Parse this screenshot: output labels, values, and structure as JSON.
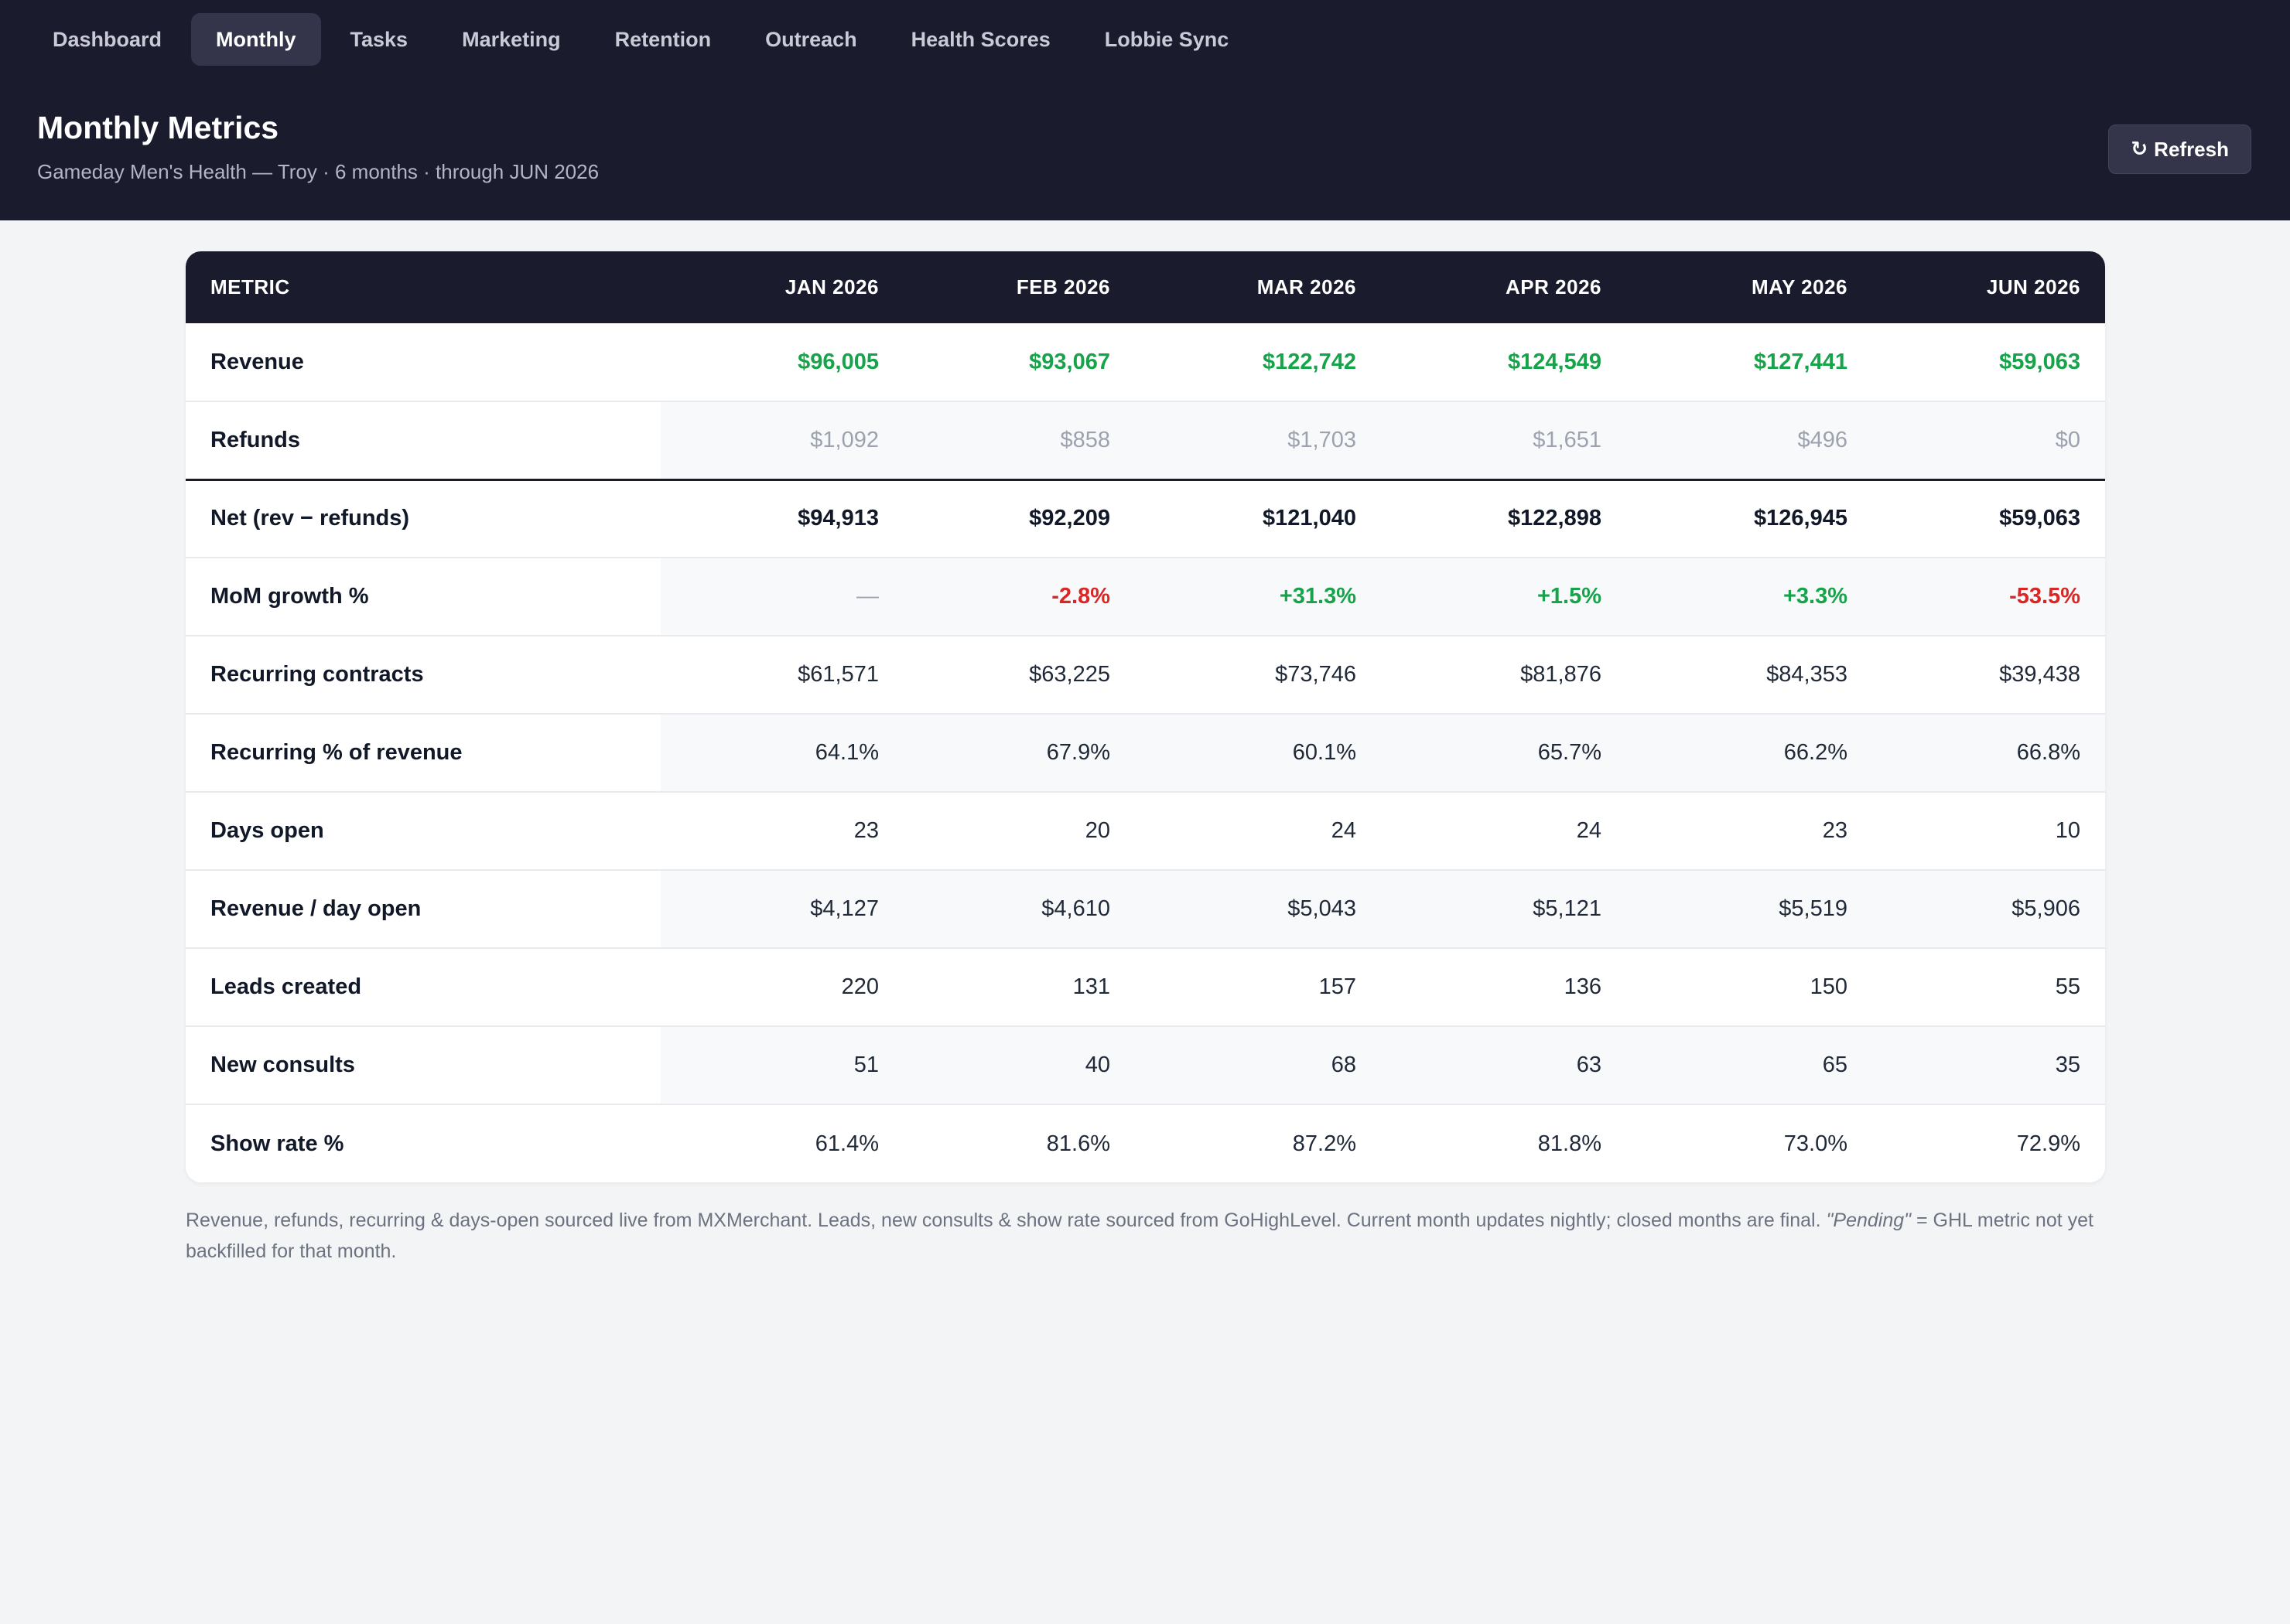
{
  "nav": {
    "tabs": [
      {
        "label": "Dashboard",
        "active": false
      },
      {
        "label": "Monthly",
        "active": true
      },
      {
        "label": "Tasks",
        "active": false
      },
      {
        "label": "Marketing",
        "active": false
      },
      {
        "label": "Retention",
        "active": false
      },
      {
        "label": "Outreach",
        "active": false
      },
      {
        "label": "Health Scores",
        "active": false
      },
      {
        "label": "Lobbie Sync",
        "active": false
      }
    ]
  },
  "header": {
    "title": "Monthly Metrics",
    "subtitle": "Gameday Men's Health — Troy · 6 months · through JUN 2026",
    "refresh_icon": "↻",
    "refresh_label": "Refresh"
  },
  "table": {
    "metric_header": "METRIC",
    "months": [
      "JAN 2026",
      "FEB 2026",
      "MAR 2026",
      "APR 2026",
      "MAY 2026",
      "JUN 2026"
    ],
    "rows": [
      {
        "label": "Revenue",
        "values": [
          "$96,005",
          "$93,067",
          "$122,742",
          "$124,549",
          "$127,441",
          "$59,063"
        ],
        "style": [
          "green",
          "green",
          "green",
          "green",
          "green",
          "green"
        ]
      },
      {
        "label": "Refunds",
        "values": [
          "$1,092",
          "$858",
          "$1,703",
          "$1,651",
          "$496",
          "$0"
        ],
        "style": [
          "muted",
          "muted",
          "muted",
          "muted",
          "muted",
          "muted"
        ]
      },
      {
        "label": "Net (rev − refunds)",
        "values": [
          "$94,913",
          "$92,209",
          "$121,040",
          "$122,898",
          "$126,945",
          "$59,063"
        ],
        "style": [
          "bold",
          "bold",
          "bold",
          "bold",
          "bold",
          "bold"
        ]
      },
      {
        "label": "MoM growth %",
        "values": [
          "—",
          "-2.8%",
          "+31.3%",
          "+1.5%",
          "+3.3%",
          "-53.5%"
        ],
        "style": [
          "dash",
          "red",
          "green",
          "green",
          "green",
          "red"
        ]
      },
      {
        "label": "Recurring contracts",
        "values": [
          "$61,571",
          "$63,225",
          "$73,746",
          "$81,876",
          "$84,353",
          "$39,438"
        ],
        "style": [
          "",
          "",
          "",
          "",
          "",
          ""
        ]
      },
      {
        "label": "Recurring % of revenue",
        "values": [
          "64.1%",
          "67.9%",
          "60.1%",
          "65.7%",
          "66.2%",
          "66.8%"
        ],
        "style": [
          "",
          "",
          "",
          "",
          "",
          ""
        ]
      },
      {
        "label": "Days open",
        "values": [
          "23",
          "20",
          "24",
          "24",
          "23",
          "10"
        ],
        "style": [
          "",
          "",
          "",
          "",
          "",
          ""
        ]
      },
      {
        "label": "Revenue / day open",
        "values": [
          "$4,127",
          "$4,610",
          "$5,043",
          "$5,121",
          "$5,519",
          "$5,906"
        ],
        "style": [
          "",
          "",
          "",
          "",
          "",
          ""
        ]
      },
      {
        "label": "Leads created",
        "values": [
          "220",
          "131",
          "157",
          "136",
          "150",
          "55"
        ],
        "style": [
          "",
          "",
          "",
          "",
          "",
          ""
        ]
      },
      {
        "label": "New consults",
        "values": [
          "51",
          "40",
          "68",
          "63",
          "65",
          "35"
        ],
        "style": [
          "",
          "",
          "",
          "",
          "",
          ""
        ]
      },
      {
        "label": "Show rate %",
        "values": [
          "61.4%",
          "81.6%",
          "87.2%",
          "81.8%",
          "73.0%",
          "72.9%"
        ],
        "style": [
          "",
          "",
          "",
          "",
          "",
          ""
        ]
      }
    ]
  },
  "footnote": {
    "text": "Revenue, refunds, recurring & days-open sourced live from MXMerchant. Leads, new consults & show rate sourced from GoHighLevel. Current month updates nightly; closed months are final.",
    "pending_term": "\"Pending\"",
    "pending_text": "= GHL metric not yet backfilled for that month."
  },
  "colors": {
    "topbar_bg": "#1b1b2e",
    "positive": "#16a34a",
    "negative": "#dc2626",
    "muted": "#9ca3af"
  }
}
